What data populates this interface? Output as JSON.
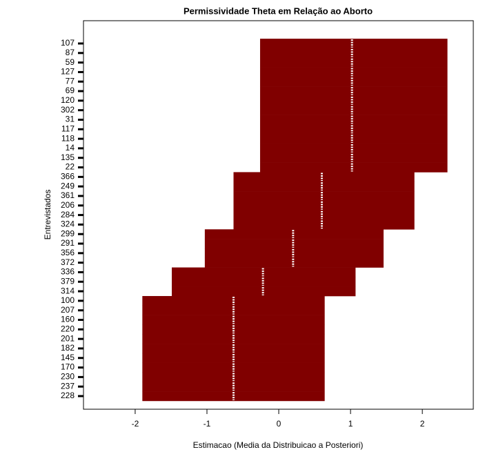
{
  "chart_data": {
    "type": "interval",
    "title": "Permissividade Theta em Relação ao Aborto",
    "x_label": "Estimacao (Media da Distribuicao a Posteriori)",
    "y_label": "Entrevistados",
    "categories": [
      "107",
      "87",
      "59",
      "127",
      "77",
      "69",
      "120",
      "302",
      "31",
      "117",
      "118",
      "14",
      "135",
      "22",
      "366",
      "249",
      "361",
      "206",
      "284",
      "324",
      "299",
      "291",
      "356",
      "372",
      "336",
      "379",
      "314",
      "100",
      "207",
      "160",
      "220",
      "201",
      "182",
      "145",
      "170",
      "230",
      "237",
      "228"
    ],
    "series": [
      {
        "name": "lower",
        "color": "#800000",
        "values": [
          -0.26,
          -0.26,
          -0.26,
          -0.26,
          -0.26,
          -0.26,
          -0.26,
          -0.26,
          -0.26,
          -0.26,
          -0.26,
          -0.26,
          -0.26,
          -0.26,
          -0.63,
          -0.63,
          -0.63,
          -0.63,
          -0.63,
          -0.63,
          -1.03,
          -1.03,
          -1.03,
          -1.03,
          -1.49,
          -1.49,
          -1.49,
          -1.9,
          -1.9,
          -1.9,
          -1.9,
          -1.9,
          -1.9,
          -1.9,
          -1.9,
          -1.9,
          -1.9,
          -1.9
        ]
      },
      {
        "name": "mean",
        "color": "#ffffff",
        "values": [
          1.02,
          1.02,
          1.02,
          1.02,
          1.02,
          1.02,
          1.02,
          1.02,
          1.02,
          1.02,
          1.02,
          1.02,
          1.02,
          1.02,
          0.6,
          0.6,
          0.6,
          0.6,
          0.6,
          0.6,
          0.2,
          0.2,
          0.2,
          0.2,
          -0.22,
          -0.22,
          -0.22,
          -0.63,
          -0.63,
          -0.63,
          -0.63,
          -0.63,
          -0.63,
          -0.63,
          -0.63,
          -0.63,
          -0.63,
          -0.63
        ]
      },
      {
        "name": "upper",
        "color": "#800000",
        "values": [
          2.35,
          2.35,
          2.35,
          2.35,
          2.35,
          2.35,
          2.35,
          2.35,
          2.35,
          2.35,
          2.35,
          2.35,
          2.35,
          2.35,
          1.89,
          1.89,
          1.89,
          1.89,
          1.89,
          1.89,
          1.46,
          1.46,
          1.46,
          1.46,
          1.07,
          1.07,
          1.07,
          0.64,
          0.64,
          0.64,
          0.64,
          0.64,
          0.64,
          0.64,
          0.64,
          0.64,
          0.64,
          0.64
        ]
      }
    ],
    "xlim": [
      -2.72,
      2.71
    ],
    "xticks": [
      -2,
      -1,
      0,
      1,
      2
    ]
  }
}
